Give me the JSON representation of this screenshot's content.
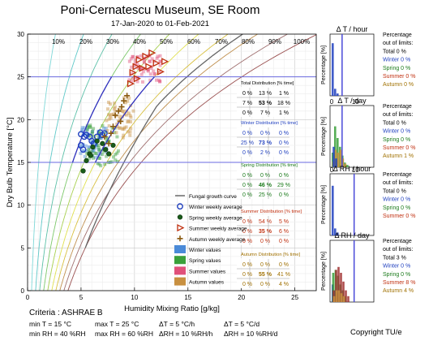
{
  "header": {
    "title": "Poni-Cernatescu Museum, SE Room",
    "subtitle": "17-Jan-2020 to 01-Feb-2021"
  },
  "chart_data": [
    {
      "type": "scatter",
      "xlabel": "Humidity Mixing Ratio [g/kg]",
      "ylabel": "Dry Bulb Temperature [°C]",
      "xlim": [
        0,
        27
      ],
      "ylim": [
        0,
        30
      ],
      "xticks": [
        "0",
        "5",
        "10",
        "15",
        "20",
        "25"
      ],
      "yticks": [
        "0",
        "5",
        "10",
        "15",
        "20",
        "25",
        "30"
      ],
      "rh_curve_labels": [
        "10%",
        "20%",
        "30%",
        "40%",
        "50%",
        "60%",
        "70%",
        "80%",
        "90%",
        "100%"
      ],
      "grid": true,
      "limits": {
        "t_min": 15,
        "t_max": 25,
        "rh_min": 40,
        "rh_max": 60
      },
      "series": [
        {
          "name": "Winter weekly average",
          "color": "#1f3fbf",
          "marker": "circle",
          "points": [
            [
              5,
              17
            ],
            [
              5.2,
              16.5
            ],
            [
              5.3,
              18
            ],
            [
              5.5,
              18.2
            ],
            [
              5.8,
              18
            ],
            [
              6,
              17.5
            ],
            [
              6.2,
              17.2
            ],
            [
              6.5,
              18
            ],
            [
              6.8,
              18.5
            ],
            [
              7,
              18.2
            ],
            [
              7.2,
              18.4
            ],
            [
              5,
              18.3
            ]
          ]
        },
        {
          "name": "Spring weekly average",
          "color": "#1a5c1a",
          "marker": "dot",
          "points": [
            [
              5.2,
              14
            ],
            [
              5.5,
              15.2
            ],
            [
              5.8,
              16
            ],
            [
              6.1,
              16.8
            ],
            [
              6.5,
              17.5
            ],
            [
              7,
              17.2
            ],
            [
              7.3,
              16.5
            ],
            [
              7.6,
              16
            ],
            [
              8,
              17
            ],
            [
              5.9,
              15.8
            ]
          ]
        },
        {
          "name": "Summer weekly average",
          "color": "#c03010",
          "marker": "triangle",
          "points": [
            [
              9.8,
              25.5
            ],
            [
              10.1,
              26.2
            ],
            [
              10.4,
              27
            ],
            [
              10.7,
              26
            ],
            [
              11,
              27.4
            ],
            [
              11.3,
              26.2
            ],
            [
              11.6,
              27.8
            ],
            [
              12,
              26.6
            ],
            [
              12.4,
              25.6
            ],
            [
              12.8,
              26.8
            ],
            [
              9.6,
              24.2
            ],
            [
              10.2,
              24.8
            ]
          ]
        },
        {
          "name": "Autumn weekly average",
          "color": "#8a5a10",
          "marker": "plus",
          "points": [
            [
              7.2,
              18
            ],
            [
              7.8,
              18.4
            ],
            [
              8.2,
              20.5
            ],
            [
              8.5,
              21
            ],
            [
              8.8,
              21.5
            ],
            [
              9,
              22.2
            ],
            [
              9.3,
              22.8
            ],
            [
              8.7,
              19.8
            ],
            [
              7.6,
              17.2
            ],
            [
              8,
              19.2
            ]
          ]
        }
      ]
    },
    {
      "type": "table",
      "tables": [
        {
          "title": "Total Distribution [% time]",
          "color": "#000000",
          "highlight": "#000000",
          "rows": [
            [
              "0 %",
              "13 %",
              "1 %"
            ],
            [
              "7 %",
              "53 %",
              "18 %"
            ],
            [
              "0 %",
              "7 %",
              "1 %"
            ]
          ]
        },
        {
          "title": "Winter Distribution [% time]",
          "color": "#1f3fbf",
          "highlight": "#1f3fbf",
          "rows": [
            [
              "0 %",
              "0 %",
              "0 %"
            ],
            [
              "25 %",
              "73 %",
              "0 %"
            ],
            [
              "0 %",
              "2 %",
              "0 %"
            ]
          ]
        },
        {
          "title": "Spring Distribution [% time]",
          "color": "#1a7a1a",
          "highlight": "#1a7a1a",
          "rows": [
            [
              "0 %",
              "0 %",
              "0 %"
            ],
            [
              "0 %",
              "46 %",
              "29 %"
            ],
            [
              "0 %",
              "25 %",
              "0 %"
            ]
          ]
        },
        {
          "title": "Summer Distribution [% time]",
          "color": "#c03010",
          "highlight": "#c03010",
          "rows": [
            [
              "0 %",
              "54 %",
              "5 %"
            ],
            [
              "0 %",
              "35 %",
              "6 %"
            ],
            [
              "0 %",
              "0 %",
              "0 %"
            ]
          ]
        },
        {
          "title": "Autumn Distribution [% time]",
          "color": "#a07000",
          "highlight": "#a07000",
          "rows": [
            [
              "0 %",
              "0 %",
              "0 %"
            ],
            [
              "0 %",
              "55 %",
              "41 %"
            ],
            [
              "0 %",
              "0 %",
              "4 %"
            ]
          ]
        }
      ]
    },
    {
      "type": "bar",
      "panels": [
        {
          "title": "Δ T / hour",
          "ylabel": "Percentage [%]",
          "xticks": [],
          "limit_x": 5,
          "limit_text": [
            "Percentage",
            "out of limits:",
            "Total 0 %",
            "Winter 0 %",
            "Spring 0 %",
            "Summer 0 %",
            "Autumn 0 %"
          ]
        },
        {
          "title": "Δ T / day",
          "ylabel": "Percentage [%]",
          "xticks": [
            "0",
            "10"
          ],
          "limit_x": 5,
          "limit_text": [
            "Percentage",
            "out of limits:",
            "Total 0 %",
            "Winter 0 %",
            "Spring 0 %",
            "Summer 0 %",
            "Autumn 1 %"
          ]
        },
        {
          "title": "Δ RH / hour",
          "ylabel": "Percentage [%]",
          "xticks": [
            "0",
            "10"
          ],
          "limit_x": 10,
          "limit_text": [
            "Percentage",
            "out of limits:",
            "Total 0 %",
            "Winter 0 %",
            "Spring 0 %",
            "Summer 0 %"
          ]
        },
        {
          "title": "Δ RH / day",
          "ylabel": "Percentage [%]",
          "xticks": [],
          "limit_x": 10,
          "limit_text": [
            "Percentage",
            "out of limits:",
            "Total 3 %",
            "Winter 0 %",
            "Spring 0 %",
            "Summer 8 %",
            "Autumn 4 %"
          ]
        }
      ]
    }
  ],
  "legend": {
    "items": [
      {
        "label": "Fungal growth curve",
        "marker": "line",
        "color": "#555555"
      },
      {
        "label": "Winter weekly average",
        "marker": "circle",
        "color": "#1f3fbf"
      },
      {
        "label": "Spring weekly average",
        "marker": "dot",
        "color": "#1a5c1a"
      },
      {
        "label": "Summer weekly average",
        "marker": "triangle",
        "color": "#c03010"
      },
      {
        "label": "Autumn weekly average",
        "marker": "plus",
        "color": "#8a5a10"
      },
      {
        "label": "Winter values",
        "marker": "swatch",
        "color": "#4a8ad8"
      },
      {
        "label": "Spring values",
        "marker": "swatch",
        "color": "#3aa03a"
      },
      {
        "label": "Summer values",
        "marker": "swatch",
        "color": "#e0507a"
      },
      {
        "label": "Autumn values",
        "marker": "swatch",
        "color": "#c89040"
      }
    ]
  },
  "criteria": {
    "label": "Criteria : ASHRAE B",
    "min_t": "min T = 15 °C",
    "max_t": "max T = 25 °C",
    "dt_h": "ΔT = 5 °C/h",
    "dt_d": "ΔT = 5 °C/d",
    "min_rh": "min RH = 40 %RH",
    "max_rh": "max RH = 60 %RH",
    "drh_h": "ΔRH = 10 %RH/h",
    "drh_d": "ΔRH = 10 %RH/d"
  },
  "footer": {
    "copyright": "Copyright TU/e"
  }
}
